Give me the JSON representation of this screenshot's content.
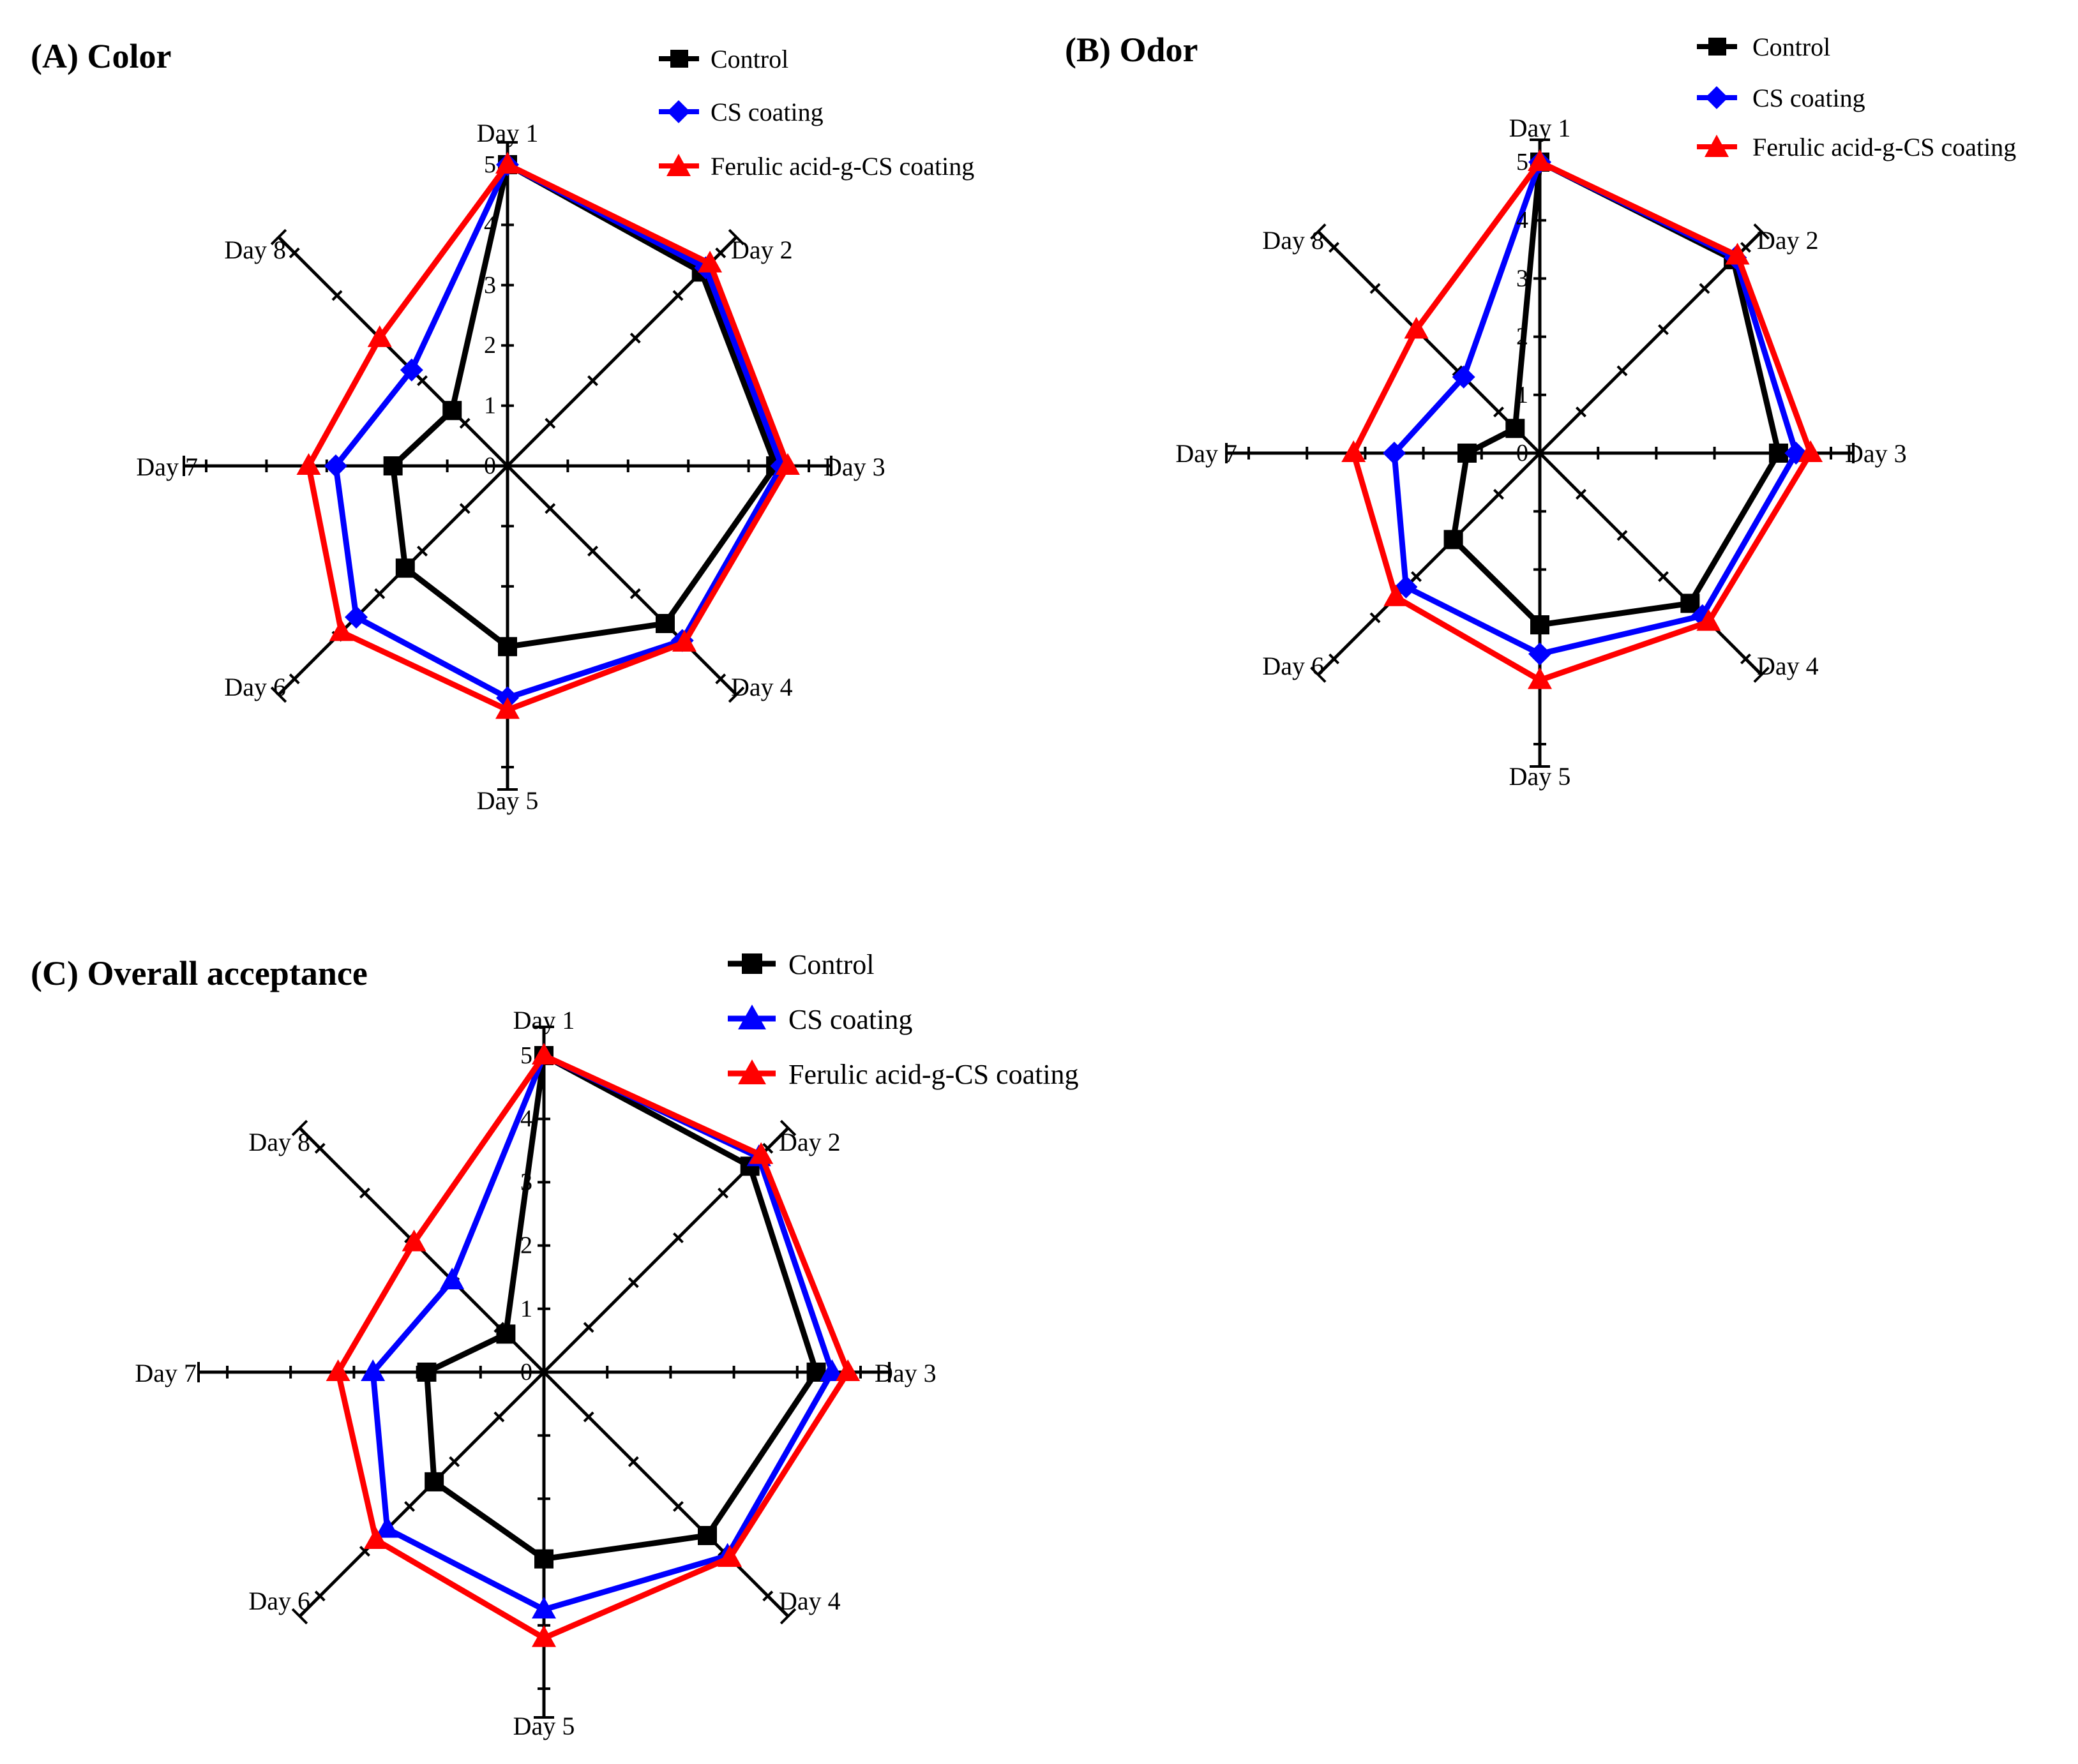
{
  "colors": {
    "control": "#000000",
    "cs": "#0000ff",
    "ferulic": "#ff0000"
  },
  "chart_data": [
    {
      "type": "radar",
      "title": "(A) Color",
      "categories": [
        "Day 1",
        "Day 2",
        "Day 3",
        "Day 4",
        "Day 5",
        "Day 6",
        "Day 7",
        "Day 8"
      ],
      "tick_labels": [
        "0",
        "1",
        "2",
        "3",
        "4",
        "5"
      ],
      "rmin": 0,
      "rmax": 5,
      "series": [
        {
          "name": "Control",
          "marker": "square",
          "color": "#000000",
          "values": [
            5.0,
            4.55,
            4.45,
            3.7,
            3.0,
            2.4,
            1.9,
            1.3
          ]
        },
        {
          "name": "CS coating",
          "marker": "diamond",
          "color": "#0000ff",
          "values": [
            5.0,
            4.65,
            4.55,
            4.1,
            3.85,
            3.55,
            2.85,
            2.25
          ]
        },
        {
          "name": "Ferulic acid-g-CS coating",
          "marker": "triangle",
          "color": "#ff0000",
          "values": [
            5.0,
            4.75,
            4.65,
            4.15,
            4.05,
            3.9,
            3.3,
            3.0
          ]
        }
      ]
    },
    {
      "type": "radar",
      "title": "(B) Odor",
      "categories": [
        "Day 1",
        "Day 2",
        "Day 3",
        "Day 4",
        "Day 5",
        "Day 6",
        "Day 7",
        "Day 8"
      ],
      "tick_labels": [
        "0",
        "1",
        "2",
        "3",
        "4",
        "5"
      ],
      "rmin": 0,
      "rmax": 5,
      "series": [
        {
          "name": "Control",
          "marker": "square",
          "color": "#000000",
          "values": [
            5.0,
            4.7,
            4.1,
            3.65,
            2.95,
            2.1,
            1.25,
            0.6
          ]
        },
        {
          "name": "CS coating",
          "marker": "diamond",
          "color": "#0000ff",
          "values": [
            5.0,
            4.75,
            4.4,
            3.95,
            3.45,
            3.25,
            2.5,
            1.85
          ]
        },
        {
          "name": "Ferulic acid-g-CS coating",
          "marker": "triangle",
          "color": "#ff0000",
          "values": [
            5.0,
            4.8,
            4.65,
            4.1,
            3.9,
            3.5,
            3.2,
            3.0
          ]
        }
      ]
    },
    {
      "type": "radar",
      "title": "(C) Overall acceptance",
      "categories": [
        "Day 1",
        "Day 2",
        "Day 3",
        "Day 4",
        "Day 5",
        "Day 6",
        "Day 7",
        "Day 8"
      ],
      "tick_labels": [
        "0",
        "1",
        "2",
        "3",
        "4",
        "5"
      ],
      "rmin": 0,
      "rmax": 5,
      "series": [
        {
          "name": "Control",
          "marker": "square",
          "color": "#000000",
          "values": [
            5.0,
            4.6,
            4.3,
            3.65,
            2.95,
            2.45,
            1.85,
            0.85
          ]
        },
        {
          "name": "CS coating",
          "marker": "triangle",
          "color": "#0000ff",
          "values": [
            5.0,
            4.8,
            4.55,
            4.1,
            3.75,
            3.5,
            2.7,
            2.05
          ]
        },
        {
          "name": "Ferulic acid-g-CS coating",
          "marker": "triangle",
          "color": "#ff0000",
          "values": [
            5.0,
            4.85,
            4.8,
            4.15,
            4.2,
            3.75,
            3.25,
            2.9
          ]
        }
      ]
    }
  ]
}
